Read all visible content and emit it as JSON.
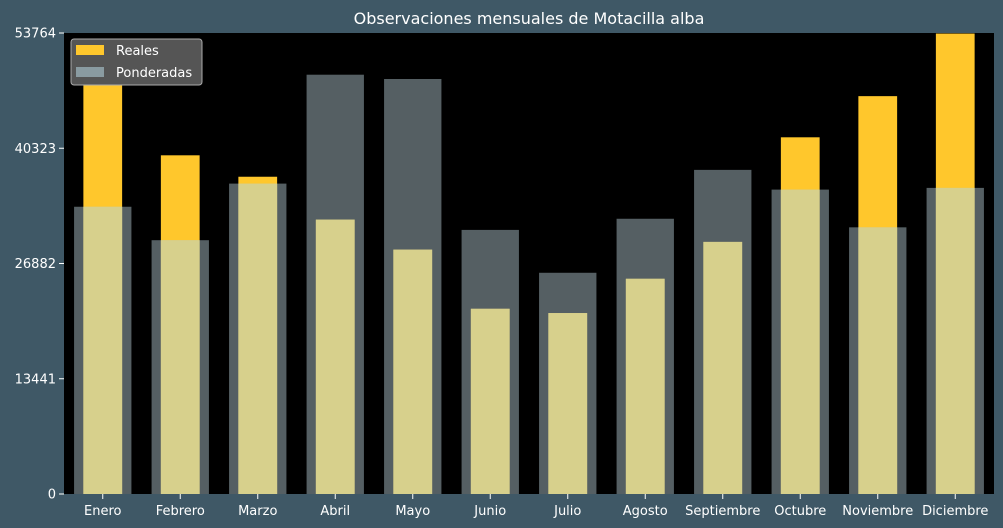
{
  "chart_data": {
    "type": "bar",
    "title": "Observaciones mensuales de Motacilla alba",
    "xlabel": "",
    "ylabel": "",
    "categories": [
      "Enero",
      "Febrero",
      "Marzo",
      "Abril",
      "Mayo",
      "Junio",
      "Julio",
      "Agosto",
      "Septiembre",
      "Octubre",
      "Noviembre",
      "Diciembre"
    ],
    "series": [
      {
        "name": "Reales",
        "color": "#ffc72c",
        "values": [
          49500,
          39500,
          37000,
          32000,
          28500,
          21600,
          21100,
          25100,
          29400,
          41600,
          46400,
          53700
        ]
      },
      {
        "name": "Ponderadas",
        "color": "#a9bec6",
        "opacity": 0.5,
        "values": [
          33500,
          29600,
          36200,
          48900,
          48400,
          30800,
          25800,
          32100,
          37800,
          35500,
          31100,
          35700
        ]
      }
    ],
    "overlap_color": "#d7d08c",
    "yticks": [
      0,
      13441,
      26882,
      40323,
      53764
    ],
    "ylim": [
      0,
      53764
    ],
    "plot_background": "#000000",
    "figure_background": "#3f5866",
    "grid": false,
    "legend_position": "top-left"
  }
}
